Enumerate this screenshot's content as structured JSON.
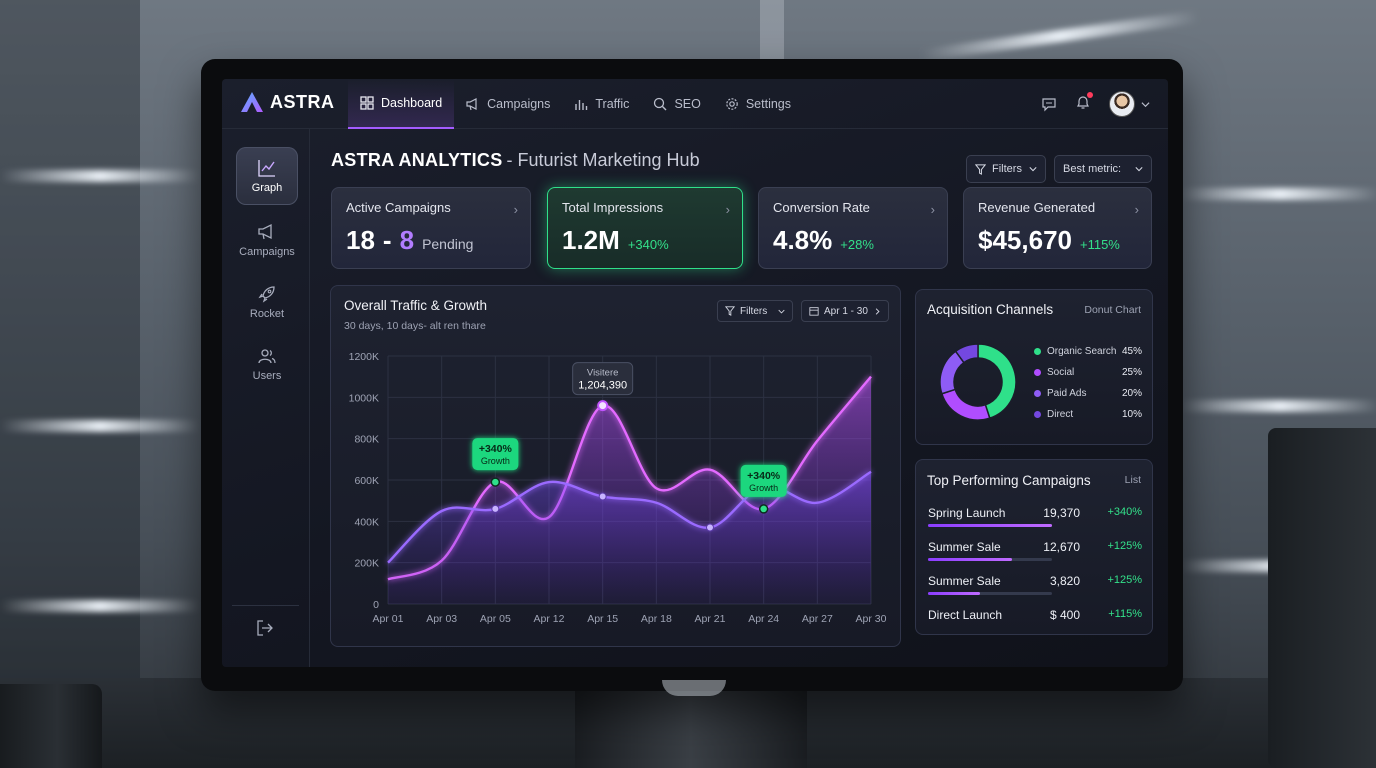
{
  "brand": {
    "name": "ASTRA"
  },
  "nav": [
    {
      "label": "Dashboard",
      "icon": "dashboard-icon",
      "active": true
    },
    {
      "label": "Campaigns",
      "icon": "megaphone-icon"
    },
    {
      "label": "Traffic",
      "icon": "bar-chart-icon"
    },
    {
      "label": "SEO",
      "icon": "search-icon"
    },
    {
      "label": "Settings",
      "icon": "gear-icon"
    }
  ],
  "sidebar": [
    {
      "label": "Graph",
      "icon": "line-chart-icon",
      "active": true
    },
    {
      "label": "Campaigns",
      "icon": "megaphone-icon"
    },
    {
      "label": "Rocket",
      "icon": "rocket-icon"
    },
    {
      "label": "Users",
      "icon": "users-icon"
    }
  ],
  "header": {
    "title": "ASTRA ANALYTICS",
    "subtitle": "- Futurist Marketing Hub",
    "filters_label": "Filters",
    "metric_label": "Best metric:"
  },
  "kpis": {
    "active": {
      "label": "Active Campaigns",
      "value_a": "18",
      "sep": "-",
      "value_b": "8",
      "suffix": "Pending"
    },
    "impressions": {
      "label": "Total Impressions",
      "value": "1.2M",
      "delta": "+340%"
    },
    "conversion": {
      "label": "Conversion Rate",
      "value": "4.8%",
      "delta": "+28%"
    },
    "revenue": {
      "label": "Revenue Generated",
      "value": "$45,670",
      "delta": "+115%"
    }
  },
  "traffic": {
    "title": "Overall Traffic & Growth",
    "subtitle": "30 days, 10 days- alt ren thare",
    "filters_label": "Filters",
    "date_label": "Apr 1 - 30",
    "tooltip_label": "Visitere",
    "tooltip_value": "1,204,390",
    "badge_value": "+340%",
    "badge_label": "Growth"
  },
  "chart_data": {
    "type": "line",
    "x": [
      "Apr 01",
      "Apr 03",
      "Apr 05",
      "Apr 12",
      "Apr 15",
      "Apr 18",
      "Apr 21",
      "Apr 24",
      "Apr 27",
      "Apr 30"
    ],
    "y_ticks": [
      "0",
      "200K",
      "400K",
      "600K",
      "800K",
      "1000K",
      "1200K"
    ],
    "ylim": [
      0,
      1200000
    ],
    "grid": true,
    "series": [
      {
        "values": [
          120000,
          210000,
          590000,
          420000,
          960000,
          560000,
          650000,
          460000,
          790000,
          1100000
        ]
      },
      {
        "values": [
          200000,
          450000,
          460000,
          590000,
          520000,
          490000,
          370000,
          570000,
          490000,
          640000
        ]
      }
    ]
  },
  "acquisition": {
    "title": "Acquisition Channels",
    "type_label": "Donut Chart",
    "channels": [
      {
        "name": "Organic Search",
        "pct": "45%",
        "value": 45,
        "color": "#2fe08a"
      },
      {
        "name": "Social",
        "pct": "25%",
        "value": 25,
        "color": "#b04dff"
      },
      {
        "name": "Paid Ads",
        "pct": "20%",
        "value": 20,
        "color": "#8e5cf5"
      },
      {
        "name": "Direct",
        "pct": "10%",
        "value": 10,
        "color": "#7448e0"
      }
    ]
  },
  "top_campaigns": {
    "title": "Top Performing Campaigns",
    "type_label": "List",
    "rows": [
      {
        "name": "Spring Launch",
        "value": "19,370",
        "pct": "+340%",
        "progress": 1.0
      },
      {
        "name": "Summer Sale",
        "value": "12,670",
        "pct": "+125%",
        "progress": 0.68
      },
      {
        "name": "Summer Sale",
        "value": "3,820",
        "pct": "+125%",
        "progress": 0.42
      },
      {
        "name": "Direct Launch",
        "value": "$ 400",
        "pct": "+115%",
        "progress": 0.0
      }
    ]
  },
  "colors": {
    "accent": "#a45cff",
    "green": "#2fe08a",
    "bg": "#141722"
  }
}
